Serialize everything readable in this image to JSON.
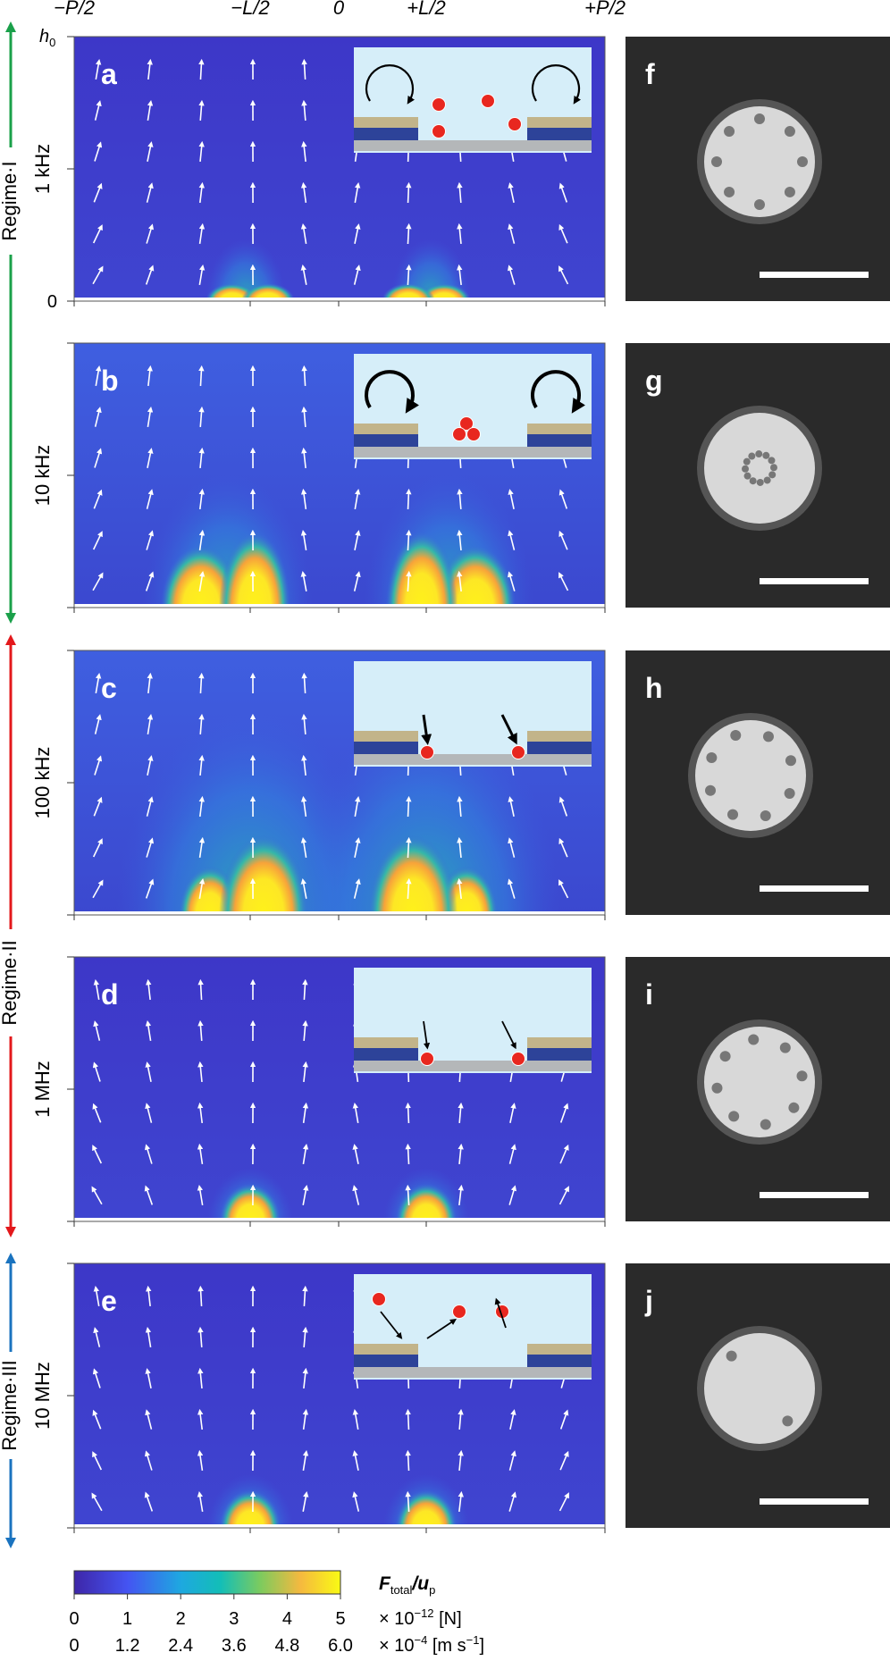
{
  "top_axis": [
    "−P/2",
    "−L/2",
    "0",
    "+L/2",
    "+P/2"
  ],
  "y_axis": {
    "top": "h",
    "top_sub": "0",
    "bottom": "0"
  },
  "panels": [
    {
      "letter": "a",
      "frequency": "1 kHz",
      "image_letter": "f"
    },
    {
      "letter": "b",
      "frequency": "10 kHz",
      "image_letter": "g"
    },
    {
      "letter": "c",
      "frequency": "100 kHz",
      "image_letter": "h"
    },
    {
      "letter": "d",
      "frequency": "1 MHz",
      "image_letter": "i"
    },
    {
      "letter": "e",
      "frequency": "10 MHz",
      "image_letter": "j"
    }
  ],
  "regimes": [
    "Regime·I",
    "Regime·II",
    "Regime·III"
  ],
  "colorbar": {
    "title": {
      "main1": "F",
      "sub1": "total",
      "sep": "/",
      "main2": "u",
      "sub2": "p"
    },
    "ticks_force": [
      "0",
      "1",
      "2",
      "3",
      "4",
      "5"
    ],
    "ticks_velocity": [
      "0",
      "1.2",
      "2.4",
      "3.6",
      "4.8",
      "6.0"
    ],
    "unit_force": {
      "pre": "× 10",
      "exp": "−12",
      "post": " [N]"
    },
    "unit_velocity": {
      "pre": "× 10",
      "exp": "−4",
      "post": " [m s",
      "exp2": "−1",
      "post2": "]"
    }
  }
}
